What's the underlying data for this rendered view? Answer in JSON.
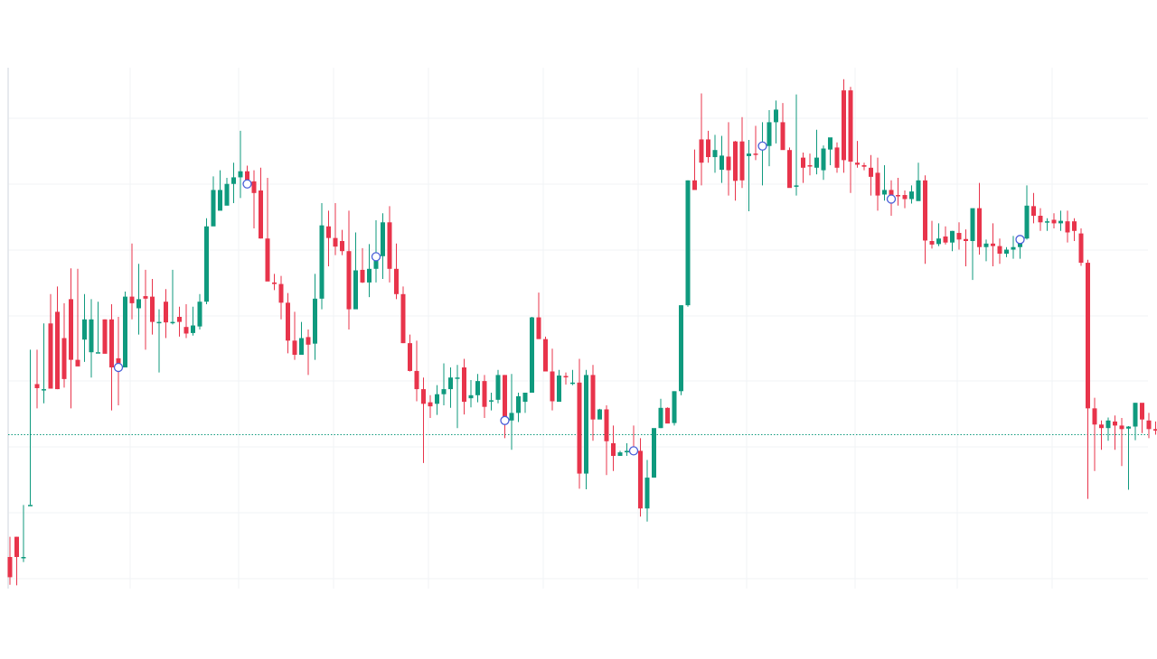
{
  "chart_data": {
    "type": "candlestick",
    "title": "",
    "xlabel": "",
    "ylabel": "",
    "grid": true,
    "ylim": [
      0,
      100
    ],
    "colors": {
      "up": "#0f9a7e",
      "down": "#e8344b",
      "grid": "#f0f3f6",
      "axis": "#dfe3e8",
      "reference_line": "#0f9a7e",
      "marker": "#4a5fd8"
    },
    "reference_line": {
      "value": 29.2,
      "style": "dotted"
    },
    "candles": [
      [
        5,
        9,
        1,
        -0.5
      ],
      [
        9,
        9,
        5,
        -0.6
      ],
      [
        5,
        15.3,
        5,
        4
      ],
      [
        15.3,
        46,
        15.3,
        15.3
      ],
      [
        39.2,
        46,
        38.4,
        34.4
      ],
      [
        38.2,
        51.2,
        38.2,
        35.4
      ],
      [
        51.2,
        57,
        38.3,
        38.3
      ],
      [
        53.5,
        58.5,
        38.2,
        38.2
      ],
      [
        48.3,
        55.2,
        40.2,
        38.5
      ],
      [
        56,
        62.1,
        44,
        34.4
      ],
      [
        44,
        62,
        42.7,
        43.7
      ],
      [
        48,
        57,
        52,
        43.6
      ],
      [
        45.5,
        56,
        52,
        40.5
      ],
      [
        45.5,
        55.5,
        45.5,
        45.5
      ],
      [
        52,
        52,
        45.2,
        45.5
      ],
      [
        52,
        55,
        42.5,
        34
      ],
      [
        44.3,
        52.5,
        42.5,
        35
      ],
      [
        42.5,
        57.5,
        56.5,
        42.5
      ],
      [
        56.5,
        67,
        55.2,
        52
      ],
      [
        54.2,
        63,
        56,
        49
      ],
      [
        56.6,
        61.8,
        56.1,
        46
      ],
      [
        56.5,
        60,
        51.5,
        49
      ],
      [
        51.5,
        54,
        51.5,
        41.5
      ],
      [
        55.5,
        58,
        51.4,
        48.3
      ],
      [
        51.4,
        61.8,
        51.5,
        51
      ],
      [
        52.5,
        54.5,
        51.5,
        48.6
      ],
      [
        50.5,
        55,
        49.2,
        48.3
      ],
      [
        49.3,
        54.5,
        50.8,
        48.8
      ],
      [
        50.6,
        57,
        55.5,
        50
      ],
      [
        55.5,
        72,
        70.4,
        55
      ],
      [
        70.4,
        80.3,
        77.6,
        73
      ],
      [
        73.5,
        81.5,
        77.6,
        73.6
      ],
      [
        74.5,
        80,
        78.8,
        75.5
      ],
      [
        78.8,
        83,
        80.1,
        75
      ],
      [
        80.1,
        89.3,
        81.3,
        76
      ],
      [
        81.3,
        82.4,
        78.8,
        78.7
      ],
      [
        79.3,
        81.5,
        77,
        70
      ],
      [
        77.5,
        82,
        68,
        68
      ],
      [
        68,
        80,
        59.5,
        66
      ],
      [
        59.3,
        61,
        59,
        57.8
      ],
      [
        59,
        60.6,
        55.3,
        52
      ],
      [
        55.3,
        57.2,
        47.8,
        45.3
      ],
      [
        47.8,
        53.5,
        45,
        44
      ],
      [
        45,
        51.5,
        48.3,
        46
      ],
      [
        48.5,
        50,
        47,
        41
      ],
      [
        47.2,
        61,
        56.1,
        44
      ],
      [
        56.1,
        75,
        70.6,
        54
      ],
      [
        70.4,
        73.5,
        68.1,
        62.5
      ],
      [
        68.1,
        75,
        66.4,
        64.7
      ],
      [
        67.5,
        69.7,
        65.5,
        64.7
      ],
      [
        65.5,
        73.5,
        54,
        50
      ],
      [
        54,
        69.2,
        61.7,
        54.5
      ],
      [
        61.8,
        66.1,
        59.3,
        59.2
      ],
      [
        59.3,
        66.9,
        62,
        56.4
      ],
      [
        62,
        71.6,
        64.4,
        59.3
      ],
      [
        64.5,
        73,
        71.2,
        60
      ],
      [
        71.2,
        74.4,
        62,
        59.3
      ],
      [
        62,
        67,
        57,
        56
      ],
      [
        57,
        58.5,
        47.3,
        47.3
      ],
      [
        47.3,
        49,
        41.8,
        41.7
      ],
      [
        41.8,
        47.8,
        38.2,
        35.8
      ],
      [
        38.2,
        40.5,
        35.3,
        23.6
      ],
      [
        35.6,
        37,
        34.8,
        32.5
      ],
      [
        35.3,
        39,
        37.2,
        33.1
      ],
      [
        37.2,
        43.3,
        38.2,
        35
      ],
      [
        38.2,
        42.5,
        40.5,
        34.5
      ],
      [
        40.5,
        43,
        40.5,
        30.5
      ],
      [
        42.5,
        44.2,
        35.7,
        33.2
      ],
      [
        36.4,
        40,
        37,
        34.6
      ],
      [
        37,
        41.2,
        39.8,
        35.6
      ],
      [
        39.8,
        41,
        34.7,
        32.5
      ],
      [
        36,
        37.5,
        36,
        34
      ],
      [
        36.1,
        42,
        41,
        35.4
      ],
      [
        41,
        41,
        32,
        28.5
      ],
      [
        32,
        41.2,
        33.5,
        26.2
      ],
      [
        33.5,
        37.5,
        36.8,
        31.7
      ],
      [
        35.7,
        37.5,
        37.5,
        33.5
      ],
      [
        37.5,
        52.5,
        52.4,
        37.5
      ],
      [
        52.4,
        57.3,
        48.1,
        48.2
      ],
      [
        48.1,
        48.6,
        41.7,
        42
      ],
      [
        41.7,
        46.2,
        35.8,
        34
      ],
      [
        35.7,
        42,
        40.9,
        36
      ],
      [
        40.8,
        41.5,
        40.6,
        39.1
      ],
      [
        39.5,
        42,
        39.5,
        39
      ],
      [
        39.5,
        44.2,
        21.5,
        18.5
      ],
      [
        21.5,
        42,
        41,
        18.4
      ],
      [
        41,
        43,
        32.2,
        28
      ],
      [
        32.2,
        34.3,
        34.2,
        32.6
      ],
      [
        34.2,
        35,
        27.9,
        21.2
      ],
      [
        27.5,
        31,
        25,
        22
      ],
      [
        25,
        26,
        25.7,
        25.7
      ],
      [
        25.7,
        27.5,
        26,
        25
      ],
      [
        26.5,
        31,
        26,
        26
      ],
      [
        26,
        28.5,
        14.6,
        13
      ],
      [
        14.6,
        24.2,
        20.7,
        12
      ],
      [
        20.7,
        27,
        30.5,
        20.7
      ],
      [
        30.5,
        36.3,
        34.5,
        30.5
      ],
      [
        34.5,
        34.6,
        31.4,
        31.5
      ],
      [
        31.5,
        37.8,
        37.8,
        31
      ],
      [
        37.8,
        54.8,
        54.8,
        37
      ],
      [
        54.8,
        79.5,
        79.5,
        54.5
      ],
      [
        79.5,
        85.6,
        77.6,
        78
      ],
      [
        87.6,
        96.7,
        83,
        78.5
      ],
      [
        87.6,
        89.3,
        84.1,
        83
      ],
      [
        84.1,
        88.5,
        85.5,
        81
      ],
      [
        81.6,
        88.3,
        84.4,
        79
      ],
      [
        84.2,
        91,
        81.5,
        76.5
      ],
      [
        87.2,
        87.3,
        79.4,
        75.5
      ],
      [
        87.2,
        92,
        79.5,
        78
      ],
      [
        84.3,
        87.5,
        84.8,
        73.4
      ],
      [
        84.8,
        90.3,
        84.6,
        83.5
      ],
      [
        86,
        91,
        86.3,
        78.5
      ],
      [
        86.3,
        93.4,
        91,
        82.3
      ],
      [
        91,
        95.3,
        93.5,
        86.8
      ],
      [
        91,
        94.8,
        85.5,
        85.6
      ],
      [
        85.5,
        86,
        78,
        78.5
      ],
      [
        78.5,
        96.5,
        78.5,
        76.5
      ],
      [
        84,
        85,
        82,
        79
      ],
      [
        82.5,
        84.8,
        82.4,
        80.5
      ],
      [
        82,
        89.5,
        84,
        80.7
      ],
      [
        81.5,
        86.4,
        85.8,
        79.6
      ],
      [
        85.6,
        86.5,
        88,
        82.5
      ],
      [
        86,
        87,
        82,
        81
      ],
      [
        97.3,
        99.5,
        83.5,
        81
      ],
      [
        97.3,
        98,
        83.2,
        77
      ],
      [
        83,
        87.3,
        82.6,
        82
      ],
      [
        82.5,
        83,
        82.2,
        81.5
      ],
      [
        82,
        84.5,
        80.2,
        76.5
      ],
      [
        81,
        84,
        76.5,
        73.5
      ],
      [
        76.7,
        82.5,
        77.6,
        75.5
      ],
      [
        77.6,
        79.5,
        75.8,
        72.5
      ],
      [
        76.6,
        80,
        76.5,
        74.5
      ],
      [
        76.6,
        77.5,
        75.8,
        74
      ],
      [
        75.8,
        78.5,
        77.3,
        74.9
      ],
      [
        75.4,
        83,
        79.5,
        76
      ],
      [
        79.5,
        80.5,
        67.6,
        63
      ],
      [
        67.5,
        71.5,
        66.8,
        66
      ],
      [
        66.9,
        71,
        68,
        66.5
      ],
      [
        68.4,
        70.4,
        67.2,
        66.8
      ],
      [
        67.2,
        69.5,
        69.5,
        65.5
      ],
      [
        69.1,
        71.2,
        67.8,
        65.8
      ],
      [
        67.9,
        69.8,
        67.5,
        62.5
      ],
      [
        67.5,
        73.3,
        74,
        59.8
      ],
      [
        74,
        79,
        66.3,
        64.8
      ],
      [
        66.3,
        67.8,
        67,
        63.5
      ],
      [
        67,
        71,
        66.5,
        62.5
      ],
      [
        66.5,
        68,
        65,
        63
      ],
      [
        65,
        66.3,
        65.8,
        64.3
      ],
      [
        65.8,
        68.5,
        66.3,
        64
      ],
      [
        66.3,
        68,
        67.8,
        64
      ],
      [
        68,
        78.5,
        74.5,
        67.8
      ],
      [
        74.4,
        77,
        72.5,
        71
      ],
      [
        72.5,
        74,
        71.2,
        69.5
      ],
      [
        71.2,
        72,
        71.4,
        69.5
      ],
      [
        71.7,
        73,
        71,
        70
      ],
      [
        71,
        73.5,
        71.5,
        69.5
      ],
      [
        71.4,
        73.5,
        69.2,
        67.2
      ],
      [
        71.4,
        72,
        69.5,
        67.5
      ],
      [
        69,
        70,
        63.2,
        62.6
      ],
      [
        63.2,
        63.8,
        34.4,
        16.5
      ],
      [
        34.4,
        36.5,
        31.2,
        22
      ],
      [
        31.2,
        32,
        30.5,
        26.2
      ],
      [
        30.5,
        32.6,
        32,
        28
      ],
      [
        31.8,
        33,
        31,
        26.2
      ],
      [
        31,
        32.5,
        30.3,
        23
      ],
      [
        30.4,
        30.9,
        30.8,
        18.3
      ],
      [
        30.8,
        35.5,
        35.5,
        28.1
      ],
      [
        35.5,
        35,
        32.2,
        29.5
      ],
      [
        32,
        33.5,
        30.3,
        28.5
      ],
      [
        30.3,
        31.8,
        30,
        29.2
      ],
      [
        30,
        31.5,
        31.4,
        28.2
      ],
      [
        31.4,
        32.1,
        31.2,
        27.6
      ]
    ],
    "markers": [
      16,
      35,
      54,
      73,
      92,
      111,
      130,
      149
    ]
  }
}
